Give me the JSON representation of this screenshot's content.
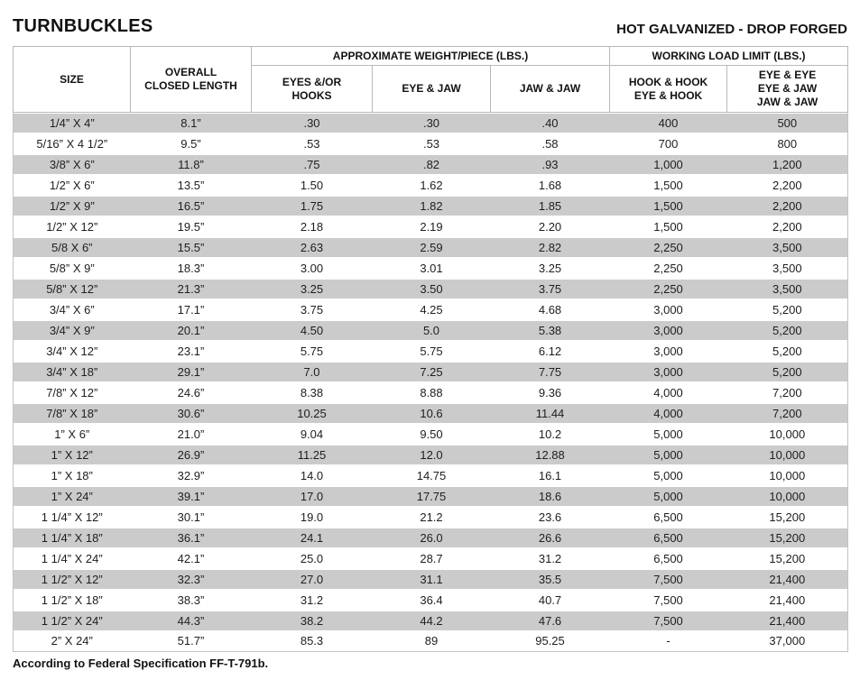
{
  "page": {
    "title": "TURNBUCKLES",
    "subtitle": "HOT GALVANIZED - DROP FORGED",
    "footnote": "According to Federal Specification FF-T-791b."
  },
  "colors": {
    "row_band": "#cbcbcb",
    "header_border": "#b9b9b9",
    "text": "#1b1b1b"
  },
  "table": {
    "group_headers": {
      "weight": "APPROXIMATE WEIGHT/PIECE (LBS.)",
      "wll": "WORKING LOAD LIMIT (LBS.)"
    },
    "headers": {
      "size": "SIZE",
      "overall": "OVERALL\nCLOSED LENGTH",
      "eyes_or_hooks": "EYES &/OR\nHOOKS",
      "eye_jaw": "EYE & JAW",
      "jaw_jaw": "JAW & JAW",
      "hook_hook": "HOOK & HOOK\nEYE & HOOK",
      "eye_eye": "EYE & EYE\nEYE & JAW\nJAW & JAW"
    },
    "column_keys": [
      "size",
      "overall-closed-length",
      "eyes-or-hooks",
      "eye-and-jaw",
      "jaw-and-jaw",
      "hook-and-hook-eye-and-hook",
      "eye-and-eye-eye-and-jaw-jaw-and-jaw"
    ],
    "rows": [
      [
        "1/4” X 4”",
        "8.1”",
        ".30",
        ".30",
        ".40",
        "400",
        "500"
      ],
      [
        "5/16” X 4 1/2”",
        "9.5”",
        ".53",
        ".53",
        ".58",
        "700",
        "800"
      ],
      [
        "3/8” X 6”",
        "11.8”",
        ".75",
        ".82",
        ".93",
        "1,000",
        "1,200"
      ],
      [
        "1/2” X 6”",
        "13.5”",
        "1.50",
        "1.62",
        "1.68",
        "1,500",
        "2,200"
      ],
      [
        "1/2” X 9”",
        "16.5”",
        "1.75",
        "1.82",
        "1.85",
        "1,500",
        "2,200"
      ],
      [
        "1/2” X 12”",
        "19.5”",
        "2.18",
        "2.19",
        "2.20",
        "1,500",
        "2,200"
      ],
      [
        "5/8 X 6”",
        "15.5”",
        "2.63",
        "2.59",
        "2.82",
        "2,250",
        "3,500"
      ],
      [
        "5/8” X 9”",
        "18.3”",
        "3.00",
        "3.01",
        "3.25",
        "2,250",
        "3,500"
      ],
      [
        "5/8” X 12”",
        "21.3”",
        "3.25",
        "3.50",
        "3.75",
        "2,250",
        "3,500"
      ],
      [
        "3/4” X 6”",
        "17.1”",
        "3.75",
        "4.25",
        "4.68",
        "3,000",
        "5,200"
      ],
      [
        "3/4” X 9”",
        "20.1”",
        "4.50",
        "5.0",
        "5.38",
        "3,000",
        "5,200"
      ],
      [
        "3/4” X 12”",
        "23.1”",
        "5.75",
        "5.75",
        "6.12",
        "3,000",
        "5,200"
      ],
      [
        "3/4” X 18”",
        "29.1”",
        "7.0",
        "7.25",
        "7.75",
        "3,000",
        "5,200"
      ],
      [
        "7/8” X 12”",
        "24.6”",
        "8.38",
        "8.88",
        "9.36",
        "4,000",
        "7,200"
      ],
      [
        "7/8” X 18”",
        "30.6”",
        "10.25",
        "10.6",
        "11.44",
        "4,000",
        "7,200"
      ],
      [
        "1” X 6”",
        "21.0”",
        "9.04",
        "9.50",
        "10.2",
        "5,000",
        "10,000"
      ],
      [
        "1” X 12”",
        "26.9”",
        "11.25",
        "12.0",
        "12.88",
        "5,000",
        "10,000"
      ],
      [
        "1” X 18”",
        "32.9”",
        "14.0",
        "14.75",
        "16.1",
        "5,000",
        "10,000"
      ],
      [
        "1” X 24”",
        "39.1”",
        "17.0",
        "17.75",
        "18.6",
        "5,000",
        "10,000"
      ],
      [
        "1 1/4” X 12”",
        "30.1”",
        "19.0",
        "21.2",
        "23.6",
        "6,500",
        "15,200"
      ],
      [
        "1 1/4” X 18”",
        "36.1”",
        "24.1",
        "26.0",
        "26.6",
        "6,500",
        "15,200"
      ],
      [
        "1 1/4” X 24”",
        "42.1”",
        "25.0",
        "28.7",
        "31.2",
        "6,500",
        "15,200"
      ],
      [
        "1 1/2” X 12”",
        "32.3”",
        "27.0",
        "31.1",
        "35.5",
        "7,500",
        "21,400"
      ],
      [
        "1 1/2” X 18”",
        "38.3”",
        "31.2",
        "36.4",
        "40.7",
        "7,500",
        "21,400"
      ],
      [
        "1 1/2” X 24”",
        "44.3”",
        "38.2",
        "44.2",
        "47.6",
        "7,500",
        "21,400"
      ],
      [
        "2” X 24”",
        "51.7”",
        "85.3",
        "89",
        "95.25",
        "-",
        "37,000"
      ]
    ]
  }
}
